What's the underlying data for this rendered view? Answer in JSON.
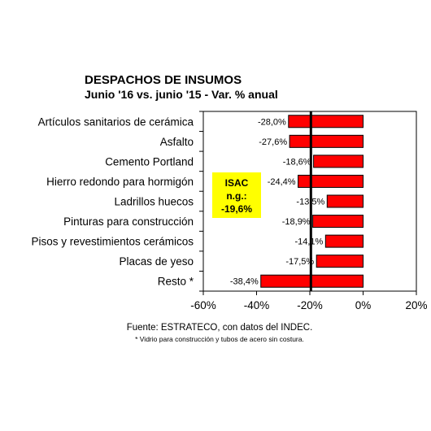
{
  "chart_data": {
    "type": "bar",
    "orientation": "horizontal",
    "title": "DESPACHOS DE INSUMOS",
    "subtitle": "Junio '16 vs. junio '15 - Var. % anual",
    "categories": [
      "Artículos sanitarios de cerámica",
      "Asfalto",
      "Cemento Portland",
      "Hierro redondo para hormigón",
      "Ladrillos huecos",
      "Pinturas para construcción",
      "Pisos y revestimientos cerámicos",
      "Placas de yeso",
      "Resto *"
    ],
    "values": [
      -28.0,
      -27.6,
      -18.6,
      -24.4,
      -13.5,
      -18.9,
      -14.1,
      -17.5,
      -38.4
    ],
    "data_labels": [
      "-28,0%",
      "-27,6%",
      "-18,6%",
      "-24,4%",
      "-13,5%",
      "-18,9%",
      "-14,1%",
      "-17,5%",
      "-38,4%"
    ],
    "xlim": [
      -60,
      20
    ],
    "x_ticks": [
      -60,
      -40,
      -20,
      0,
      20
    ],
    "x_tick_labels": [
      "-60%",
      "-40%",
      "-20%",
      "0%",
      "20%"
    ],
    "reference_line": -19.6,
    "bar_color": "#ff0000",
    "annotation": {
      "lines": [
        "ISAC",
        "n.g.:",
        "-19,6%"
      ],
      "background": "#ffff00"
    },
    "source": "Fuente: ESTRATECO, con datos del INDEC.",
    "footnote": "* Vidrio para construcción y tubos de acero sin costura.",
    "grid": false
  }
}
